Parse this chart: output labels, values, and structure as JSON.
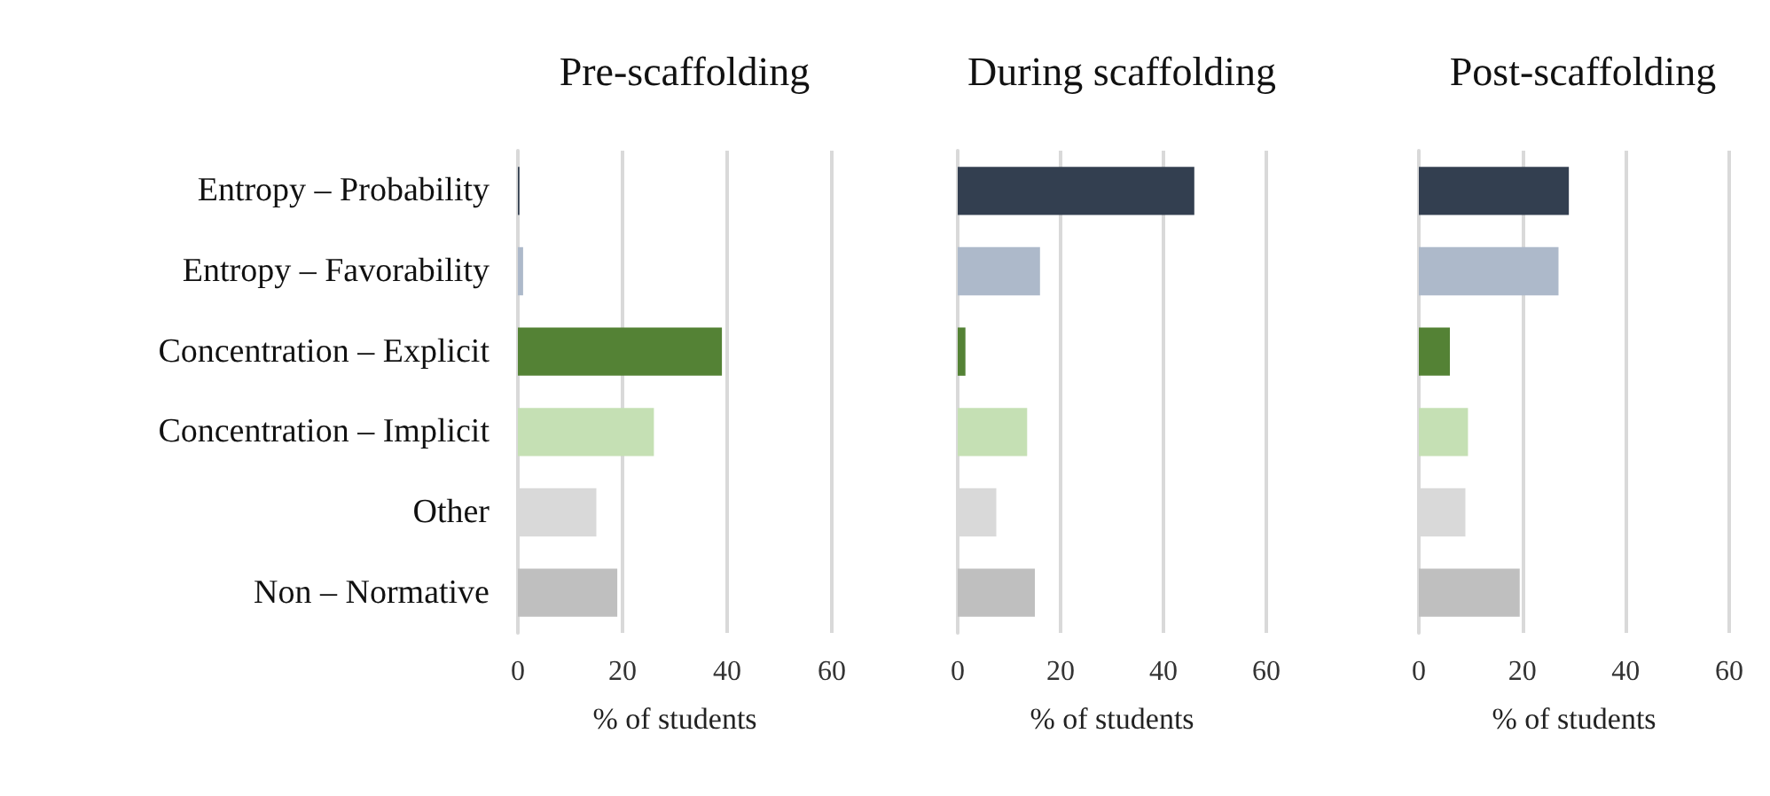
{
  "chart_data": [
    {
      "type": "bar",
      "orientation": "horizontal",
      "title": "Pre-scaffolding",
      "xlabel": "% of students",
      "categories": [
        "Entropy – Probability",
        "Entropy – Favorability",
        "Concentration – Explicit",
        "Concentration – Implicit",
        "Other",
        "Non – Normative"
      ],
      "values": [
        0.3,
        1,
        39,
        26,
        15,
        19
      ],
      "colors": [
        "#333f50",
        "#adb9ca",
        "#548235",
        "#c5e0b4",
        "#d9d9d9",
        "#bfbfbf"
      ],
      "xlim": [
        0,
        60
      ],
      "xticks": [
        0,
        20,
        40,
        60
      ],
      "grid": "x"
    },
    {
      "type": "bar",
      "orientation": "horizontal",
      "title": "During scaffolding",
      "xlabel": "% of students",
      "categories": [
        null,
        null,
        null,
        null,
        null,
        null
      ],
      "values": [
        46,
        16,
        1.5,
        13.5,
        7.5,
        15
      ],
      "colors": [
        "#333f50",
        "#adb9ca",
        "#548235",
        "#c5e0b4",
        "#d9d9d9",
        "#bfbfbf"
      ],
      "xlim": [
        0,
        60
      ],
      "xticks": [
        0,
        20,
        40,
        60
      ],
      "grid": "x"
    },
    {
      "type": "bar",
      "orientation": "horizontal",
      "title": "Post-scaffolding",
      "xlabel": "% of students",
      "categories": [
        null,
        null,
        null,
        null,
        null,
        null
      ],
      "values": [
        29,
        27,
        6,
        9.5,
        9,
        19.5
      ],
      "colors": [
        "#333f50",
        "#adb9ca",
        "#548235",
        "#c5e0b4",
        "#d9d9d9",
        "#bfbfbf"
      ],
      "xlim": [
        0,
        60
      ],
      "xticks": [
        0,
        20,
        40,
        60
      ],
      "grid": "x"
    }
  ]
}
